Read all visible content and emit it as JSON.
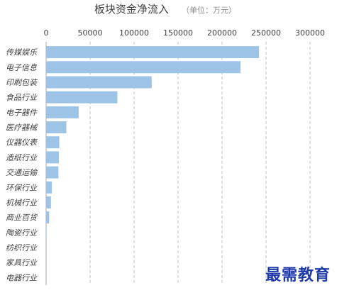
{
  "chart_data": {
    "type": "bar",
    "orientation": "horizontal",
    "title": "板块资金净流入",
    "unit_label": "（单位：万元）",
    "categories": [
      "传媒娱乐",
      "电子信息",
      "印刷包装",
      "食品行业",
      "电子器件",
      "医疗器械",
      "仪器仪表",
      "造纸行业",
      "交通运输",
      "环保行业",
      "机械行业",
      "商业百货",
      "陶瓷行业",
      "纺织行业",
      "家具行业",
      "电器行业"
    ],
    "values": [
      242000,
      221000,
      120000,
      81000,
      37000,
      23000,
      15000,
      14500,
      14000,
      6500,
      5500,
      3500,
      500,
      300,
      200,
      100
    ],
    "xticks": [
      "0",
      "50000",
      "100000",
      "150000",
      "200000",
      "250000",
      "300000"
    ],
    "xlim": [
      0,
      300000
    ],
    "grid": "vertical-dashed",
    "bar_color": "#9dc3e6"
  },
  "watermark": "最需教育"
}
